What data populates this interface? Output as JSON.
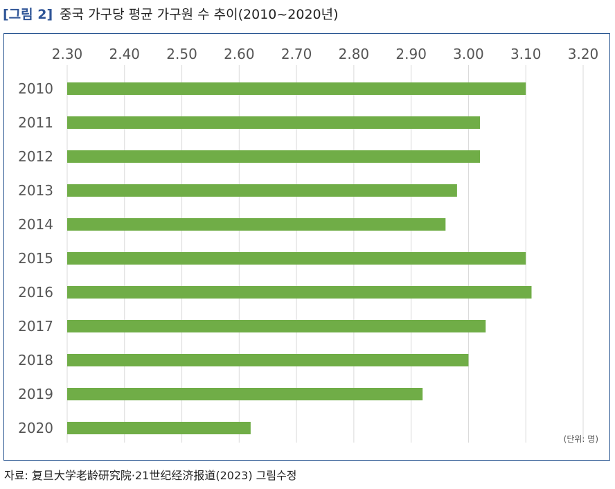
{
  "figure": {
    "label": "[그림 2]",
    "title": "중국 가구당 평균 가구원 수 추이(2010~2020년)"
  },
  "source": "자료: 复旦大学老龄研究院·21世纪经济报道(2023) 그림수정",
  "colors": {
    "bar": "#70ad47",
    "grid": "#d9d9d9",
    "border": "#1f4e8c",
    "figure_label": "#2f5597"
  },
  "chart_data": {
    "type": "bar",
    "orientation": "horizontal",
    "categories": [
      "2010",
      "2011",
      "2012",
      "2013",
      "2014",
      "2015",
      "2016",
      "2017",
      "2018",
      "2019",
      "2020"
    ],
    "values": [
      3.1,
      3.02,
      3.02,
      2.98,
      2.96,
      3.1,
      3.11,
      3.03,
      3.0,
      2.92,
      2.62
    ],
    "xlim": [
      2.3,
      3.2
    ],
    "xticks": [
      "2.30",
      "2.40",
      "2.50",
      "2.60",
      "2.70",
      "2.80",
      "2.90",
      "3.00",
      "3.10",
      "3.20"
    ],
    "xaxis_position": "top",
    "grid": true,
    "unit_label": "(단위: 명)"
  }
}
